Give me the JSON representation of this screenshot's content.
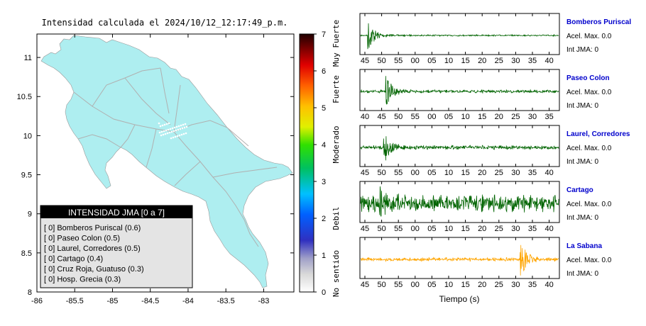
{
  "map": {
    "title": "Intensidad calculada el 2024/10/12_12:17:49_p.m.",
    "x_ticks": [
      "-86",
      "-85.5",
      "-85",
      "-84.5",
      "-84",
      "-83.5",
      "-83"
    ],
    "x_values": [
      -86,
      -85.5,
      -85,
      -84.5,
      -84,
      -83.5,
      -83
    ],
    "y_ticks": [
      "11",
      "10.5",
      "10",
      "9.5",
      "9",
      "8.5",
      "8"
    ],
    "y_values": [
      11,
      10.5,
      10,
      9.5,
      9,
      8.5,
      8
    ],
    "xlim": [
      -86,
      -82.6
    ],
    "ylim": [
      8,
      11.3
    ],
    "land_color": "#aeeef0",
    "road_color": "#b0b0b0"
  },
  "legend": {
    "title": "INTENSIDAD JMA [0 a 7]",
    "items": [
      "[ 0]  Bomberos Puriscal (0.6)",
      "[ 0]  Paseo Colon (0.5)",
      "[ 0]  Laurel, Corredores (0.5)",
      "[ 0]  Cartago (0.4)",
      "[ 0]  Cruz Roja, Guatuso (0.3)",
      "[ 0]  Hosp. Grecia (0.3)"
    ]
  },
  "colorbar": {
    "ticks": [
      "0",
      "1",
      "2",
      "3",
      "4",
      "5",
      "6",
      "7"
    ],
    "values": [
      0,
      1,
      2,
      3,
      4,
      5,
      6,
      7
    ],
    "labels": [
      "No sentido",
      "Debil",
      "Moderado",
      "Fuerte",
      "Muy Fuerte"
    ],
    "label_positions": [
      0.5,
      2,
      4,
      5.5,
      6.75
    ]
  },
  "chart_data": [
    {
      "type": "line",
      "name": "Bomberos Puriscal",
      "accel_label": "Acel. Max. 0.0",
      "jma_label": "Int JMA: 0",
      "x_ticks": [
        "45",
        "50",
        "55",
        "00",
        "05",
        "10",
        "15",
        "20",
        "25",
        "30",
        "35",
        "40"
      ],
      "color": "#006400",
      "noise": 0.03,
      "burst_at": 0.04,
      "burst_amp": 0.8
    },
    {
      "type": "line",
      "name": "Paseo Colon",
      "accel_label": "Acel. Max. 0.0",
      "jma_label": "Int JMA: 0",
      "x_ticks": [
        "40",
        "45",
        "50",
        "55",
        "00",
        "05",
        "10",
        "15",
        "20",
        "25",
        "30",
        "35"
      ],
      "color": "#006400",
      "noise": 0.06,
      "burst_at": 0.13,
      "burst_amp": 0.75
    },
    {
      "type": "line",
      "name": "Laurel, Corredores",
      "accel_label": "Acel. Max. 0.0",
      "jma_label": "Int JMA: 0",
      "x_ticks": [
        "45",
        "50",
        "55",
        "00",
        "05",
        "10",
        "15",
        "20",
        "25",
        "30",
        "35",
        "40"
      ],
      "color": "#006400",
      "noise": 0.08,
      "burst_at": 0.12,
      "burst_amp": 0.75
    },
    {
      "type": "line",
      "name": "Cartago",
      "accel_label": "Acel. Max. 0.0",
      "jma_label": "Int JMA: 0",
      "x_ticks": [
        "45",
        "50",
        "55",
        "00",
        "05",
        "10",
        "15",
        "20",
        "25",
        "30",
        "35",
        "40"
      ],
      "color": "#006400",
      "noise": 0.35,
      "burst_at": 0.1,
      "burst_amp": 0.5
    },
    {
      "type": "line",
      "name": "La Sabana",
      "accel_label": "Acel. Max. 0.0",
      "jma_label": "Int JMA: 0",
      "x_ticks": [
        "45",
        "50",
        "55",
        "00",
        "05",
        "10",
        "15",
        "20",
        "25",
        "30",
        "35",
        "40"
      ],
      "color": "#ffa500",
      "noise": 0.07,
      "burst_at": 0.81,
      "burst_amp": 0.85
    }
  ],
  "x_axis_label": "Tiempo (s)"
}
